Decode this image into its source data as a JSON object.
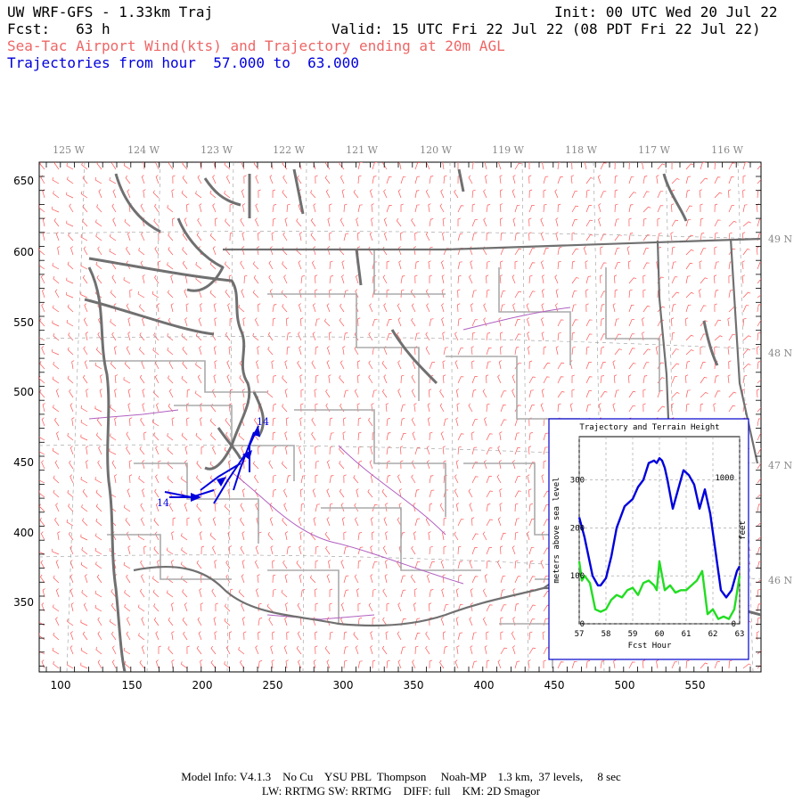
{
  "header": {
    "model_title": "UW WRF-GFS - 1.33km Traj",
    "init": "Init: 00 UTC Wed 20 Jul 22",
    "fcst": "Fcst:   63 h",
    "valid": "Valid: 15 UTC Fri 22 Jul 22 (08 PDT Fri 22 Jul 22)",
    "subtitle_pink": "Sea-Tac Airport Wind(kts) and Trajectory ending at 20m AGL",
    "subtitle_blue": "Trajectories from hour  57.000 to  63.000"
  },
  "map": {
    "lon_labels": [
      "125 W",
      "124 W",
      "123 W",
      "122 W",
      "121 W",
      "120 W",
      "119 W",
      "118 W",
      "117 W",
      "116 W"
    ],
    "lat_labels": [
      "49 N",
      "48 N",
      "47 N",
      "46 N"
    ],
    "x_ticks": [
      "100",
      "150",
      "200",
      "250",
      "300",
      "350",
      "400",
      "450",
      "500",
      "550"
    ],
    "y_ticks": [
      "650",
      "600",
      "550",
      "500",
      "450",
      "400",
      "350"
    ],
    "trajectory_labels": [
      "14",
      "14"
    ],
    "colors": {
      "coast": "#707070",
      "border": "#aaaaaa",
      "wind_barb": "#ff5555",
      "trajectory": "#0000dd",
      "river": "#b060c0"
    }
  },
  "inset": {
    "title": "Trajectory and Terrain Height",
    "ylabel_left": "meters above sea level",
    "ylabel_right": "feet",
    "xlabel": "Fcst Hour",
    "x_ticks": [
      "57",
      "58",
      "59",
      "60",
      "61",
      "62",
      "63"
    ],
    "y_ticks_left": [
      "0",
      "100",
      "200",
      "300"
    ],
    "y_ticks_right": [
      "0",
      "1000"
    ]
  },
  "chart_data": {
    "type": "line",
    "title": "Trajectory and Terrain Height",
    "xlabel": "Fcst Hour",
    "ylabel": "meters above sea level",
    "xlim": [
      57,
      63
    ],
    "ylim": [
      0,
      390
    ],
    "grid": true,
    "series": [
      {
        "color": "#0000dd",
        "x": [
          57.0,
          57.2,
          57.5,
          57.7,
          57.8,
          58.0,
          58.2,
          58.4,
          58.7,
          59.0,
          59.2,
          59.4,
          59.6,
          59.8,
          59.9,
          60.0,
          60.1,
          60.2,
          60.3,
          60.5,
          60.7,
          60.9,
          61.1,
          61.3,
          61.5,
          61.6,
          61.7,
          61.9,
          62.1,
          62.3,
          62.5,
          62.7,
          62.9,
          63.0
        ],
        "y": [
          222,
          180,
          100,
          80,
          80,
          95,
          140,
          200,
          245,
          260,
          285,
          300,
          335,
          340,
          335,
          345,
          340,
          325,
          300,
          240,
          280,
          320,
          310,
          290,
          240,
          260,
          280,
          230,
          150,
          70,
          55,
          70,
          110,
          120
        ]
      },
      {
        "color": "#22dd22",
        "x": [
          57.0,
          57.1,
          57.2,
          57.4,
          57.6,
          57.8,
          58.0,
          58.2,
          58.4,
          58.6,
          58.8,
          59.0,
          59.2,
          59.4,
          59.6,
          59.8,
          59.9,
          60.0,
          60.2,
          60.4,
          60.6,
          60.8,
          61.0,
          61.2,
          61.4,
          61.6,
          61.8,
          62.0,
          62.2,
          62.4,
          62.6,
          62.8,
          63.0
        ],
        "y": [
          130,
          90,
          100,
          85,
          30,
          25,
          30,
          50,
          60,
          55,
          70,
          75,
          60,
          85,
          90,
          80,
          70,
          130,
          70,
          80,
          65,
          70,
          70,
          80,
          90,
          110,
          20,
          30,
          10,
          15,
          10,
          30,
          100
        ]
      }
    ]
  },
  "footer": {
    "line1": "Model Info: V4.1.3    No Cu    YSU PBL  Thompson     Noah-MP    1.3 km,  37 levels,     8 sec",
    "line2": "LW: RRTMG SW: RRTMG    DIFF: full    KM: 2D Smagor"
  }
}
